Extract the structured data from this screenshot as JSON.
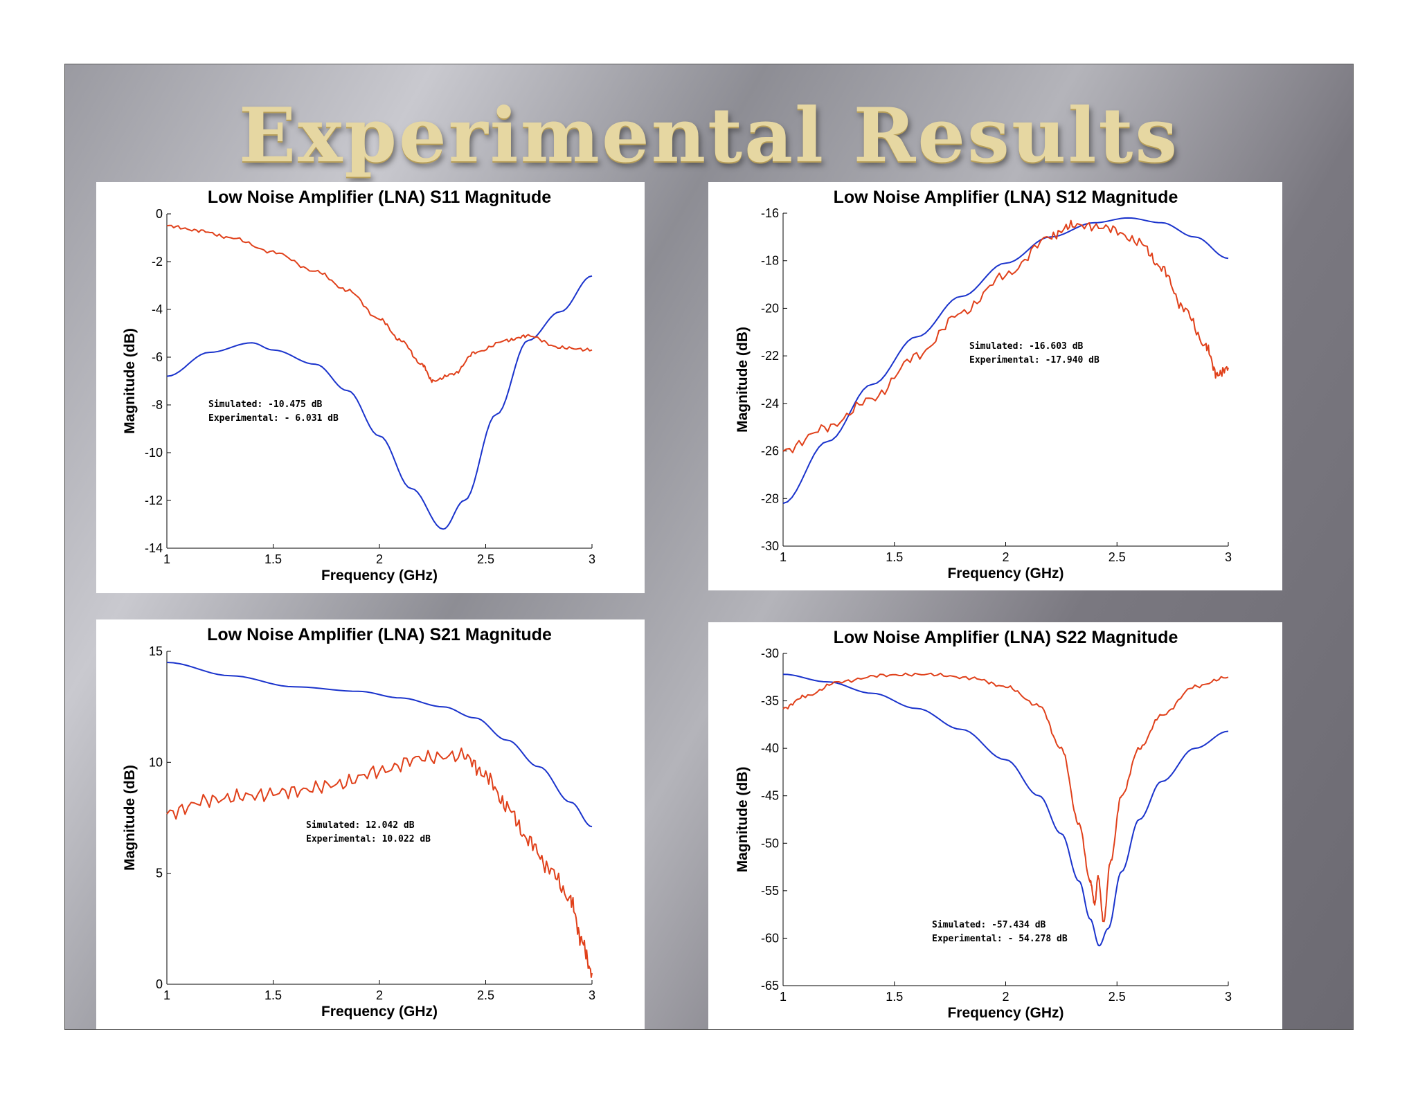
{
  "slide": {
    "title": "Experimental Results"
  },
  "colors": {
    "simulated": "#1a33cc",
    "experimental": "#e0401a"
  },
  "chart_data": [
    {
      "id": "s11",
      "type": "line",
      "title": "Low Noise Amplifier (LNA) S11 Magnitude",
      "xlabel": "Frequency (GHz)",
      "ylabel": "Magnitude (dB)",
      "xlim": [
        1,
        3
      ],
      "ylim": [
        -14,
        0
      ],
      "xticks": [
        1,
        1.5,
        2,
        2.5,
        3
      ],
      "yticks": [
        0,
        -2,
        -4,
        -6,
        -8,
        -10,
        -12,
        -14
      ],
      "annotation": [
        "Simulated: -10.475 dB",
        "Experimental: - 6.031 dB"
      ],
      "series": [
        {
          "name": "Simulated",
          "color": "#1a33cc",
          "noise": 0,
          "points": [
            [
              1,
              -6.8
            ],
            [
              1.2,
              -5.8
            ],
            [
              1.4,
              -5.4
            ],
            [
              1.5,
              -5.7
            ],
            [
              1.7,
              -6.3
            ],
            [
              1.85,
              -7.4
            ],
            [
              2.0,
              -9.3
            ],
            [
              2.15,
              -11.5
            ],
            [
              2.3,
              -13.2
            ],
            [
              2.4,
              -12.0
            ],
            [
              2.55,
              -8.4
            ],
            [
              2.7,
              -5.3
            ],
            [
              2.85,
              -4.1
            ],
            [
              3.0,
              -2.6
            ]
          ]
        },
        {
          "name": "Experimental",
          "color": "#e0401a",
          "noise": 0.07,
          "points": [
            [
              1,
              -0.5
            ],
            [
              1.15,
              -0.7
            ],
            [
              1.3,
              -1.0
            ],
            [
              1.5,
              -1.6
            ],
            [
              1.7,
              -2.4
            ],
            [
              1.85,
              -3.2
            ],
            [
              2.0,
              -4.4
            ],
            [
              2.1,
              -5.3
            ],
            [
              2.2,
              -6.3
            ],
            [
              2.25,
              -7.0
            ],
            [
              2.35,
              -6.7
            ],
            [
              2.45,
              -5.8
            ],
            [
              2.6,
              -5.3
            ],
            [
              2.7,
              -5.1
            ],
            [
              2.85,
              -5.6
            ],
            [
              3.0,
              -5.7
            ]
          ]
        }
      ]
    },
    {
      "id": "s12",
      "type": "line",
      "title": "Low Noise Amplifier (LNA) S12 Magnitude",
      "xlabel": "Frequency (GHz)",
      "ylabel": "Magnitude (dB)",
      "xlim": [
        1,
        3
      ],
      "ylim": [
        -30,
        -16
      ],
      "xticks": [
        1,
        1.5,
        2,
        2.5,
        3
      ],
      "yticks": [
        -16,
        -18,
        -20,
        -22,
        -24,
        -26,
        -28,
        -30
      ],
      "annotation": [
        "Simulated: -16.603 dB",
        "Experimental: -17.940 dB"
      ],
      "series": [
        {
          "name": "Simulated",
          "color": "#1a33cc",
          "noise": 0,
          "points": [
            [
              1,
              -28.2
            ],
            [
              1.2,
              -25.6
            ],
            [
              1.4,
              -23.2
            ],
            [
              1.6,
              -21.2
            ],
            [
              1.8,
              -19.5
            ],
            [
              2.0,
              -18.1
            ],
            [
              2.2,
              -17.0
            ],
            [
              2.4,
              -16.4
            ],
            [
              2.55,
              -16.2
            ],
            [
              2.7,
              -16.4
            ],
            [
              2.85,
              -17.0
            ],
            [
              3.0,
              -17.9
            ]
          ]
        },
        {
          "name": "Experimental",
          "color": "#e0401a",
          "noise": 0.2,
          "points": [
            [
              1,
              -26.0
            ],
            [
              1.2,
              -25.0
            ],
            [
              1.4,
              -23.8
            ],
            [
              1.6,
              -22.0
            ],
            [
              1.8,
              -20.2
            ],
            [
              2.0,
              -18.6
            ],
            [
              2.2,
              -17.0
            ],
            [
              2.3,
              -16.5
            ],
            [
              2.45,
              -16.6
            ],
            [
              2.6,
              -17.2
            ],
            [
              2.7,
              -18.3
            ],
            [
              2.8,
              -20.0
            ],
            [
              2.9,
              -21.6
            ],
            [
              2.95,
              -22.8
            ],
            [
              3.0,
              -22.5
            ]
          ]
        }
      ]
    },
    {
      "id": "s21",
      "type": "line",
      "title": "Low Noise Amplifier (LNA) S21 Magnitude",
      "xlabel": "Frequency (GHz)",
      "ylabel": "Magnitude (dB)",
      "xlim": [
        1,
        3
      ],
      "ylim": [
        0,
        15
      ],
      "xticks": [
        1,
        1.5,
        2,
        2.5,
        3
      ],
      "yticks": [
        15,
        10,
        5,
        0
      ],
      "annotation": [
        "Simulated: 12.042 dB",
        "Experimental: 10.022 dB"
      ],
      "series": [
        {
          "name": "Simulated",
          "color": "#1a33cc",
          "noise": 0,
          "points": [
            [
              1,
              14.5
            ],
            [
              1.3,
              13.9
            ],
            [
              1.6,
              13.4
            ],
            [
              1.9,
              13.2
            ],
            [
              2.1,
              12.9
            ],
            [
              2.3,
              12.5
            ],
            [
              2.45,
              12.0
            ],
            [
              2.6,
              11.0
            ],
            [
              2.75,
              9.8
            ],
            [
              2.9,
              8.2
            ],
            [
              3.0,
              7.1
            ]
          ]
        },
        {
          "name": "Experimental",
          "color": "#e0401a",
          "noise": 0.35,
          "points": [
            [
              1,
              7.7
            ],
            [
              1.2,
              8.3
            ],
            [
              1.4,
              8.5
            ],
            [
              1.6,
              8.7
            ],
            [
              1.8,
              9.0
            ],
            [
              2.0,
              9.6
            ],
            [
              2.2,
              10.2
            ],
            [
              2.4,
              10.3
            ],
            [
              2.5,
              9.4
            ],
            [
              2.6,
              8.0
            ],
            [
              2.7,
              6.5
            ],
            [
              2.8,
              5.2
            ],
            [
              2.9,
              3.8
            ],
            [
              2.95,
              2.0
            ],
            [
              3.0,
              0.5
            ]
          ]
        }
      ]
    },
    {
      "id": "s22",
      "type": "line",
      "title": "Low Noise Amplifier (LNA) S22 Magnitude",
      "xlabel": "Frequency (GHz)",
      "ylabel": "Magnitude (dB)",
      "xlim": [
        1,
        3
      ],
      "ylim": [
        -65,
        -30
      ],
      "xticks": [
        1,
        1.5,
        2,
        2.5,
        3
      ],
      "yticks": [
        -30,
        -35,
        -40,
        -45,
        -50,
        -55,
        -60,
        -65
      ],
      "annotation": [
        "Simulated: -57.434 dB",
        "Experimental: - 54.278 dB"
      ],
      "series": [
        {
          "name": "Simulated",
          "color": "#1a33cc",
          "noise": 0,
          "points": [
            [
              1,
              -32.2
            ],
            [
              1.2,
              -33.0
            ],
            [
              1.4,
              -34.2
            ],
            [
              1.6,
              -35.8
            ],
            [
              1.8,
              -38.0
            ],
            [
              2.0,
              -41.2
            ],
            [
              2.15,
              -45.0
            ],
            [
              2.25,
              -49.0
            ],
            [
              2.33,
              -54.0
            ],
            [
              2.38,
              -58.0
            ],
            [
              2.42,
              -60.8
            ],
            [
              2.46,
              -59.0
            ],
            [
              2.52,
              -53.0
            ],
            [
              2.6,
              -47.5
            ],
            [
              2.7,
              -43.5
            ],
            [
              2.85,
              -40.0
            ],
            [
              3.0,
              -38.2
            ]
          ]
        },
        {
          "name": "Experimental",
          "color": "#e0401a",
          "noise": 0.18,
          "points": [
            [
              1,
              -35.8
            ],
            [
              1.1,
              -34.5
            ],
            [
              1.25,
              -33.0
            ],
            [
              1.45,
              -32.3
            ],
            [
              1.65,
              -32.2
            ],
            [
              1.85,
              -32.6
            ],
            [
              2.0,
              -33.5
            ],
            [
              2.15,
              -35.5
            ],
            [
              2.25,
              -40.0
            ],
            [
              2.33,
              -48.0
            ],
            [
              2.38,
              -54.0
            ],
            [
              2.4,
              -56.4
            ],
            [
              2.415,
              -53.5
            ],
            [
              2.44,
              -58.3
            ],
            [
              2.47,
              -52.0
            ],
            [
              2.52,
              -45.0
            ],
            [
              2.6,
              -40.0
            ],
            [
              2.7,
              -36.5
            ],
            [
              2.85,
              -33.5
            ],
            [
              3.0,
              -32.5
            ]
          ]
        }
      ]
    }
  ]
}
